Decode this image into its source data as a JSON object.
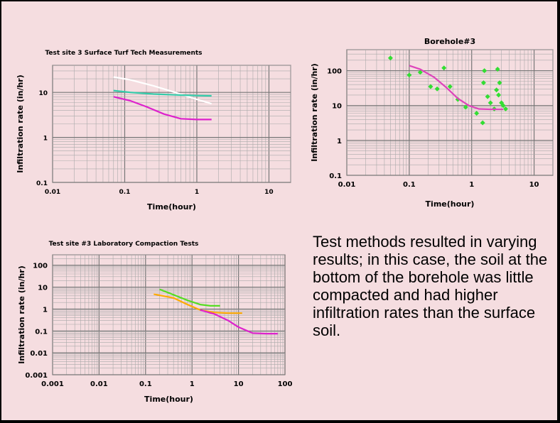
{
  "note": "Test methods resulted in varying results; in this case, the soil at the bottom of the borehole was little compacted and had higher infiltration rates than the surface soil.",
  "chart_data": [
    {
      "type": "line",
      "title": "Test site 3 Surface Turf Tech Measurements",
      "xlabel": "Time(hour)",
      "ylabel": "Infiltration rate  (in/hr)",
      "x_scale": "log",
      "y_scale": "log",
      "xlim": [
        0.01,
        20
      ],
      "ylim": [
        0.1,
        40
      ],
      "x_ticks": [
        "0.01",
        "0.1",
        "1",
        "10"
      ],
      "y_ticks": [
        "0.1",
        "1",
        "10"
      ],
      "grid": true,
      "series": [
        {
          "color": "#ffffff",
          "x": [
            0.07,
            0.12,
            0.25,
            0.5,
            1.0,
            1.6
          ],
          "y": [
            22,
            19,
            14,
            10,
            7,
            5.6
          ]
        },
        {
          "color": "#33ccaa",
          "x": [
            0.07,
            0.12,
            0.25,
            0.5,
            1.0,
            1.6
          ],
          "y": [
            11,
            10,
            9.2,
            8.8,
            8.5,
            8.4
          ]
        },
        {
          "color": "#dd22cc",
          "x": [
            0.07,
            0.12,
            0.2,
            0.35,
            0.6,
            1.0,
            1.6
          ],
          "y": [
            8,
            6.5,
            4.8,
            3.3,
            2.6,
            2.5,
            2.5
          ]
        }
      ]
    },
    {
      "type": "scatter",
      "title": "Borehole#3",
      "xlabel": "Time(hour)",
      "ylabel": "Infiltration rate  (in/hr)",
      "x_scale": "log",
      "y_scale": "log",
      "xlim": [
        0.01,
        20
      ],
      "ylim": [
        0.1,
        400
      ],
      "x_ticks": [
        "0.01",
        "0.1",
        "1",
        "10"
      ],
      "y_ticks": [
        "0.1",
        "1",
        "10",
        "100"
      ],
      "grid": true,
      "series": [
        {
          "color": "#33dd33",
          "mode": "points",
          "x": [
            0.05,
            0.1,
            0.15,
            0.22,
            0.28,
            0.36,
            0.45,
            0.6,
            0.8,
            1.2,
            1.5,
            1.6,
            1.8,
            2.0,
            2.3,
            2.6,
            2.8,
            3.0,
            3.2,
            3.5,
            1.55,
            2.5,
            2.7
          ],
          "y": [
            230,
            75,
            90,
            35,
            30,
            120,
            35,
            15,
            9,
            6,
            3.2,
            100,
            18,
            12,
            8,
            110,
            45,
            12,
            10,
            8,
            45,
            28,
            20
          ]
        },
        {
          "color": "#dd44bb",
          "mode": "line",
          "x": [
            0.1,
            0.15,
            0.25,
            0.4,
            0.6,
            0.9,
            1.3,
            2.0,
            3.2
          ],
          "y": [
            140,
            110,
            65,
            32,
            16,
            10,
            8,
            7.8,
            7.8
          ]
        }
      ]
    },
    {
      "type": "line",
      "title": "Test site #3 Laboratory Compaction Tests",
      "xlabel": "Time(hour)",
      "ylabel": "Infiltration rate  (in/hr)",
      "x_scale": "log",
      "y_scale": "log",
      "xlim": [
        0.001,
        100
      ],
      "ylim": [
        0.001,
        300
      ],
      "x_ticks": [
        "0.001",
        "0.01",
        "0.1",
        "1",
        "10",
        "100"
      ],
      "y_ticks": [
        "0.001",
        "0.01",
        "0.1",
        "1",
        "10",
        "100"
      ],
      "grid": true,
      "series": [
        {
          "color": "#55dd22",
          "x": [
            0.2,
            0.4,
            0.8,
            1.5,
            2.5,
            4
          ],
          "y": [
            8,
            4.5,
            2.5,
            1.6,
            1.4,
            1.4
          ]
        },
        {
          "color": "#ffaa00",
          "x": [
            0.15,
            0.4,
            0.8,
            1.5,
            3,
            6,
            12
          ],
          "y": [
            4.8,
            3.2,
            1.6,
            0.9,
            0.7,
            0.65,
            0.65
          ]
        },
        {
          "color": "#dd22cc",
          "x": [
            1.5,
            3,
            6,
            10,
            20,
            40,
            70
          ],
          "y": [
            0.9,
            0.6,
            0.3,
            0.15,
            0.08,
            0.075,
            0.075
          ]
        }
      ]
    }
  ]
}
